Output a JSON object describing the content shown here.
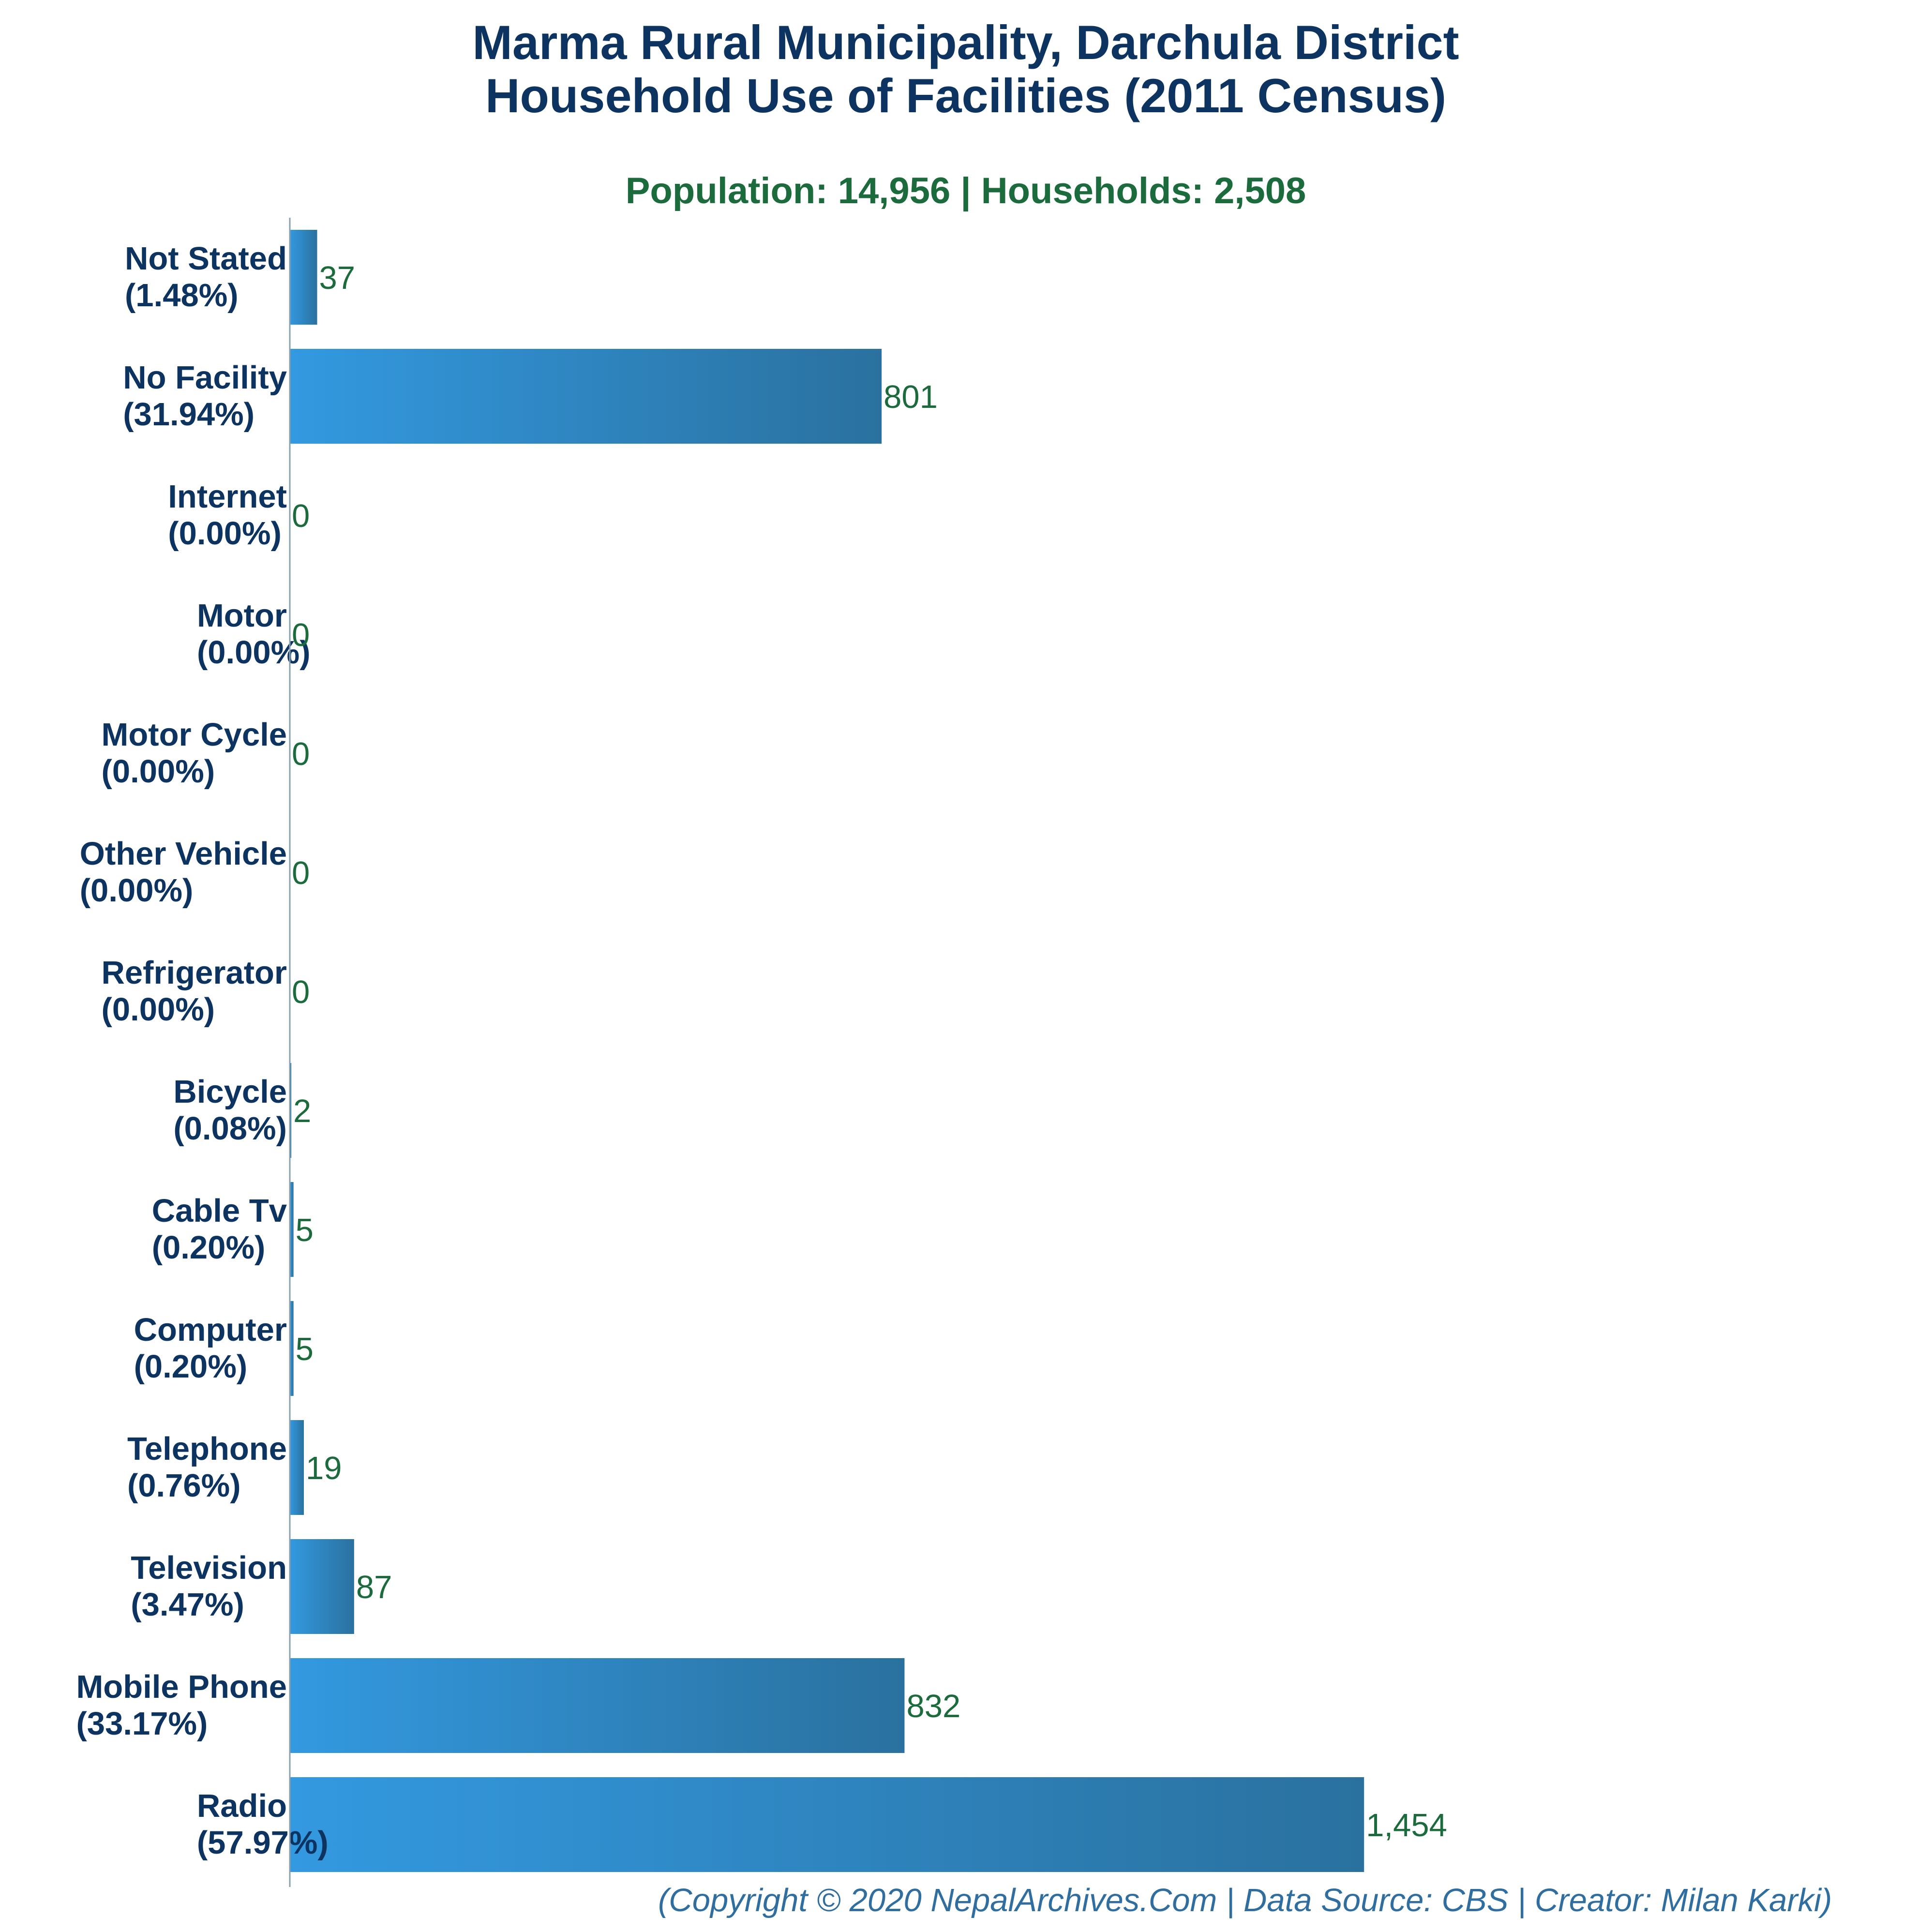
{
  "chart_data": {
    "type": "bar",
    "orientation": "horizontal",
    "title": "Marma Rural Municipality, Darchula District",
    "title_line2": "Household Use of Facilities (2011 Census)",
    "subtitle": "Population: 14,956 | Households: 2,508",
    "categories": [
      "Not Stated",
      "No Facility",
      "Internet",
      "Motor",
      "Motor Cycle",
      "Other Vehicle",
      "Refrigerator",
      "Bicycle",
      "Cable Tv",
      "Computer",
      "Telephone",
      "Television",
      "Mobile Phone",
      "Radio"
    ],
    "percent_labels": [
      "(1.48%)",
      "(31.94%)",
      "(0.00%)",
      "(0.00%)",
      "(0.00%)",
      "(0.00%)",
      "(0.00%)",
      "(0.08%)",
      "(0.20%)",
      "(0.20%)",
      "(0.76%)",
      "(3.47%)",
      "(33.17%)",
      "(57.97%)"
    ],
    "values": [
      37,
      801,
      0,
      0,
      0,
      0,
      0,
      2,
      5,
      5,
      19,
      87,
      832,
      1454
    ],
    "value_labels": [
      "37",
      "801",
      "0",
      "0",
      "0",
      "0",
      "0",
      "2",
      "5",
      "5",
      "19",
      "87",
      "832",
      "1,454"
    ],
    "xlim": [
      0,
      1520
    ],
    "grid": false,
    "legend": "none",
    "colors": {
      "bar_start": "#3399e0",
      "bar_end": "#2a719f",
      "title": "#0d3461",
      "subtitle": "#1b6b3d",
      "category_label": "#0d3461",
      "value_label": "#1b6b3d",
      "footer": "#2f6e9e",
      "axis": "#8aa0b0"
    }
  },
  "footer": "(Copyright © 2020 NepalArchives.Com | Data Source: CBS | Creator: Milan Karki)"
}
